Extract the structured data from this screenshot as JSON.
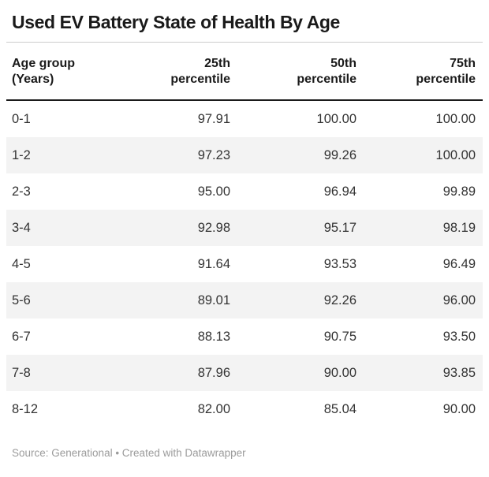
{
  "title": "Used EV Battery State of Health By Age",
  "colors": {
    "text_dark": "#1a1a1a",
    "text_body": "#333333",
    "text_muted": "#9b9b9b",
    "rule_light": "#cccccc",
    "rule_dark": "#1a1a1a",
    "stripe": "#f3f3f3",
    "background": "#ffffff"
  },
  "footer": {
    "source_text": "Source: Generational • Created with Datawrapper"
  },
  "chart_data": {
    "type": "table",
    "title": "Used EV Battery State of Health By Age",
    "columns": [
      {
        "line1": "Age group",
        "line2": "(Years)"
      },
      {
        "line1": "25th",
        "line2": "percentile"
      },
      {
        "line1": "50th",
        "line2": "percentile"
      },
      {
        "line1": "75th",
        "line2": "percentile"
      }
    ],
    "rows": [
      {
        "age": "0-1",
        "p25": "97.91",
        "p50": "100.00",
        "p75": "100.00"
      },
      {
        "age": "1-2",
        "p25": "97.23",
        "p50": "99.26",
        "p75": "100.00"
      },
      {
        "age": "2-3",
        "p25": "95.00",
        "p50": "96.94",
        "p75": "99.89"
      },
      {
        "age": "3-4",
        "p25": "92.98",
        "p50": "95.17",
        "p75": "98.19"
      },
      {
        "age": "4-5",
        "p25": "91.64",
        "p50": "93.53",
        "p75": "96.49"
      },
      {
        "age": "5-6",
        "p25": "89.01",
        "p50": "92.26",
        "p75": "96.00"
      },
      {
        "age": "6-7",
        "p25": "88.13",
        "p50": "90.75",
        "p75": "93.50"
      },
      {
        "age": "7-8",
        "p25": "87.96",
        "p50": "90.00",
        "p75": "93.85"
      },
      {
        "age": "8-12",
        "p25": "82.00",
        "p50": "85.04",
        "p75": "90.00"
      }
    ],
    "zebra_striping": true,
    "header_alignment": [
      "left",
      "right",
      "right",
      "right"
    ]
  }
}
